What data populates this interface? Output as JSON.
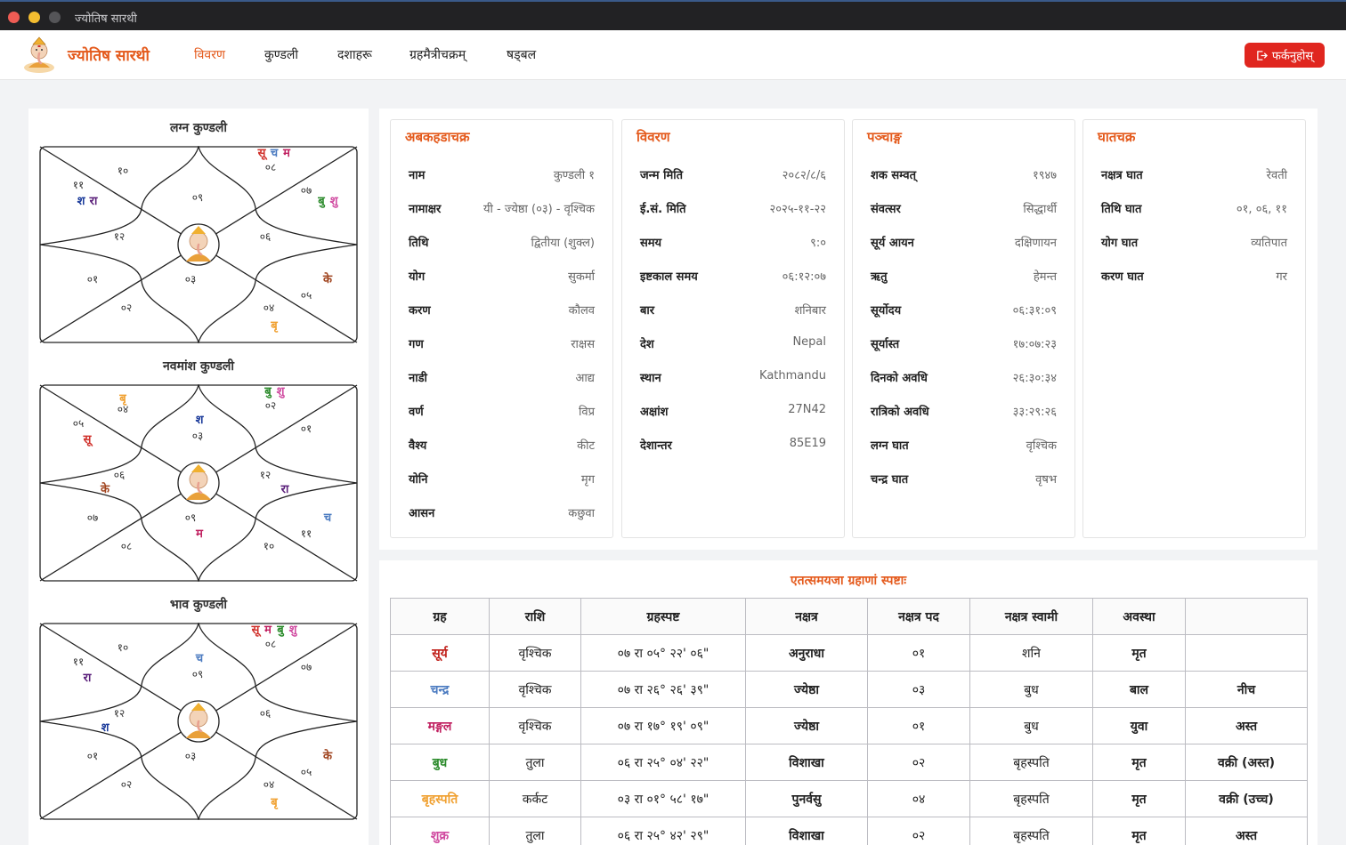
{
  "window": {
    "title": "ज्योतिष सारथी"
  },
  "navbar": {
    "brand": "ज्योतिष सारथी",
    "items": [
      "विवरण",
      "कुण्डली",
      "दशाहरू",
      "ग्रहमैत्रीचक्रम्",
      "षड्बल"
    ],
    "active": 0,
    "back_label": "फर्कनुहोस्"
  },
  "charts": [
    {
      "title": "लग्न कुण्डली",
      "houses": [
        "०९",
        "१०",
        "११",
        "१२",
        "०१",
        "०२",
        "०३",
        "०४",
        "०५",
        "०६",
        "०७",
        "०८"
      ],
      "planets": [
        [],
        [],
        [
          [
            "श",
            "#1a3a9a"
          ],
          [
            "रा",
            "#5a1f7a"
          ]
        ],
        [],
        [],
        [],
        [],
        [
          [
            "बृ",
            "#f0a030"
          ]
        ],
        [
          [
            "के",
            "#a0441f"
          ]
        ],
        [],
        [
          [
            "बु",
            "#2a8a2a"
          ],
          [
            "शु",
            "#d04aa0"
          ]
        ],
        [
          [
            "सू",
            "#d0302a"
          ],
          [
            "च",
            "#4a7ac0"
          ],
          [
            "म",
            "#c02060"
          ]
        ]
      ]
    },
    {
      "title": "नवमांश कुण्डली",
      "houses": [
        "०३",
        "०४",
        "०५",
        "०६",
        "०७",
        "०८",
        "०९",
        "१०",
        "११",
        "१२",
        "०१",
        "०२"
      ],
      "planets": [
        [
          [
            "श",
            "#1a3a9a"
          ]
        ],
        [
          [
            "बृ",
            "#f0a030"
          ]
        ],
        [
          [
            "सू",
            "#d0302a"
          ]
        ],
        [
          [
            "के",
            "#a0441f"
          ]
        ],
        [],
        [],
        [
          [
            "म",
            "#c02060"
          ]
        ],
        [],
        [
          [
            "च",
            "#4a7ac0"
          ]
        ],
        [
          [
            "रा",
            "#5a1f7a"
          ]
        ],
        [],
        [
          [
            "बु",
            "#2a8a2a"
          ],
          [
            "शु",
            "#d04aa0"
          ]
        ]
      ]
    },
    {
      "title": "भाव कुण्डली",
      "houses": [
        "०९",
        "१०",
        "११",
        "१२",
        "०१",
        "०२",
        "०३",
        "०४",
        "०५",
        "०६",
        "०७",
        "०८"
      ],
      "planets": [
        [
          [
            "च",
            "#4a7ac0"
          ]
        ],
        [],
        [
          [
            "रा",
            "#5a1f7a"
          ]
        ],
        [
          [
            "श",
            "#1a3a9a"
          ]
        ],
        [],
        [],
        [],
        [
          [
            "बृ",
            "#f0a030"
          ]
        ],
        [
          [
            "के",
            "#a0441f"
          ]
        ],
        [],
        [],
        [
          [
            "सू",
            "#d0302a"
          ],
          [
            "म",
            "#c02060"
          ],
          [
            "बु",
            "#2a8a2a"
          ],
          [
            "शु",
            "#d04aa0"
          ]
        ]
      ]
    }
  ],
  "cards": [
    {
      "title": "अबकहडाचक्र",
      "rows": [
        [
          "नाम",
          "कुण्डली १"
        ],
        [
          "नामाक्षर",
          "यी - ज्येष्ठा (०३) - वृश्चिक"
        ],
        [
          "तिथि",
          "द्वितीया (शुक्ल)"
        ],
        [
          "योग",
          "सुकर्मा"
        ],
        [
          "करण",
          "कौलव"
        ],
        [
          "गण",
          "राक्षस"
        ],
        [
          "नाडी",
          "आद्य"
        ],
        [
          "वर्ण",
          "विप्र"
        ],
        [
          "वैश्य",
          "कीट"
        ],
        [
          "योनि",
          "मृग"
        ],
        [
          "आसन",
          "कछुवा"
        ]
      ]
    },
    {
      "title": "विवरण",
      "rows": [
        [
          "जन्म मिति",
          "२०८२/८/६"
        ],
        [
          "ई.सं. मिति",
          "२०२५-११-२२"
        ],
        [
          "समय",
          "९:०"
        ],
        [
          "इष्टकाल समय",
          "०६:१२:०७"
        ],
        [
          "बार",
          "शनिबार"
        ],
        [
          "देश",
          "Nepal"
        ],
        [
          "स्थान",
          "Kathmandu"
        ],
        [
          "अक्षांश",
          "27N42"
        ],
        [
          "देशान्तर",
          "85E19"
        ]
      ]
    },
    {
      "title": "पञ्चाङ्ग",
      "rows": [
        [
          "शक सम्वत्",
          "१९४७"
        ],
        [
          "संवत्सर",
          "सिद्धार्थी"
        ],
        [
          "सूर्य आयन",
          "दक्षिणायन"
        ],
        [
          "ऋतु",
          "हेमन्त"
        ],
        [
          "सूर्योदय",
          "०६:३१:०९"
        ],
        [
          "सूर्यास्त",
          "१७:०७:२३"
        ],
        [
          "दिनको अवधि",
          "२६:३०:३४"
        ],
        [
          "रात्रिको अवधि",
          "३३:२९:२६"
        ],
        [
          "लग्न घात",
          "वृश्चिक"
        ],
        [
          "चन्द्र घात",
          "वृषभ"
        ]
      ]
    },
    {
      "title": "घातचक्र",
      "rows": [
        [
          "नक्षत्र घात",
          "रेवती"
        ],
        [
          "तिथि घात",
          "०१, ०६, ११"
        ],
        [
          "योग घात",
          "व्यतिपात"
        ],
        [
          "करण घात",
          "गर"
        ]
      ]
    }
  ],
  "planet_table": {
    "title": "एतत्समयजा ग्रहाणां स्पष्टाः",
    "headers": [
      "ग्रह",
      "राशि",
      "ग्रहस्पष्ट",
      "नक्षत्र",
      "नक्षत्र पद",
      "नक्षत्र स्वामी",
      "अवस्था",
      ""
    ],
    "rows": [
      {
        "graha": "सूर्य",
        "color": "#c0201a",
        "rashi": "वृश्चिक",
        "spashta": "०७ रा ०५° २२' ०६\"",
        "nakshatra": "अनुराधा",
        "pada": "०१",
        "swami": "शनि",
        "avastha": "मृत",
        "note": ""
      },
      {
        "graha": "चन्द्र",
        "color": "#4a7ac0",
        "rashi": "वृश्चिक",
        "spashta": "०७ रा २६° २६' ३९\"",
        "nakshatra": "ज्येष्ठा",
        "pada": "०३",
        "swami": "बुध",
        "avastha": "बाल",
        "note": "नीच"
      },
      {
        "graha": "मङ्गल",
        "color": "#c02060",
        "rashi": "वृश्चिक",
        "spashta": "०७ रा १७° १९' ०९\"",
        "nakshatra": "ज्येष्ठा",
        "pada": "०१",
        "swami": "बुध",
        "avastha": "युवा",
        "note": "अस्त"
      },
      {
        "graha": "बुध",
        "color": "#2a8a2a",
        "rashi": "तुला",
        "spashta": "०६ रा २५° ०४' २२\"",
        "nakshatra": "विशाखा",
        "pada": "०२",
        "swami": "बृहस्पति",
        "avastha": "मृत",
        "note": "वक्री (अस्त)"
      },
      {
        "graha": "बृहस्पति",
        "color": "#f0a030",
        "rashi": "कर्कट",
        "spashta": "०३ रा ०१° ५८' १७\"",
        "nakshatra": "पुनर्वसु",
        "pada": "०४",
        "swami": "बृहस्पति",
        "avastha": "मृत",
        "note": "वक्री (उच्च)"
      },
      {
        "graha": "शुक्र",
        "color": "#d04aa0",
        "rashi": "तुला",
        "spashta": "०६ रा २५° ४२' २९\"",
        "nakshatra": "विशाखा",
        "pada": "०२",
        "swami": "बृहस्पति",
        "avastha": "मृत",
        "note": "अस्त"
      }
    ]
  }
}
